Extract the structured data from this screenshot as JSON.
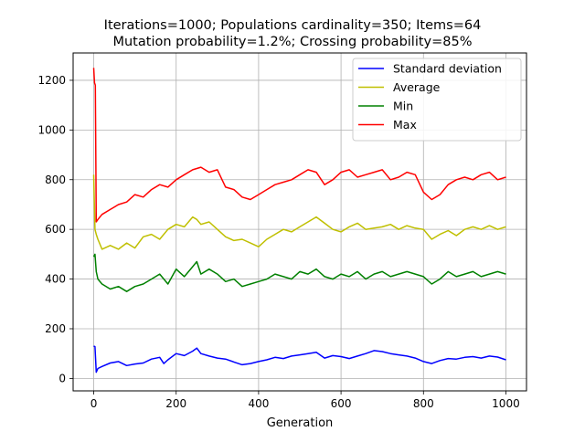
{
  "chart_data": {
    "type": "line",
    "title_lines": [
      "Iterations=1000; Populations cardinality=350; Items=64",
      "Mutation probability=1.2%; Crossing probability=85%"
    ],
    "xlabel": "Generation",
    "ylabel": "",
    "xlim": [
      -50,
      1050
    ],
    "ylim": [
      -50,
      1310
    ],
    "xticks": [
      0,
      200,
      400,
      600,
      800,
      1000
    ],
    "yticks": [
      0,
      200,
      400,
      600,
      800,
      1000,
      1200
    ],
    "grid": true,
    "legend_position": "upper right",
    "series": [
      {
        "name": "Standard deviation",
        "color": "#0000ff",
        "x": [
          0,
          3,
          6,
          10,
          20,
          40,
          60,
          80,
          100,
          120,
          140,
          160,
          170,
          180,
          200,
          220,
          240,
          250,
          260,
          280,
          300,
          320,
          340,
          360,
          380,
          400,
          420,
          440,
          460,
          480,
          500,
          520,
          540,
          560,
          580,
          600,
          620,
          640,
          660,
          680,
          700,
          720,
          740,
          760,
          780,
          800,
          820,
          840,
          860,
          880,
          900,
          920,
          940,
          960,
          980,
          1000
        ],
        "y": [
          130,
          128,
          25,
          40,
          48,
          62,
          68,
          52,
          58,
          62,
          78,
          85,
          60,
          75,
          100,
          92,
          110,
          122,
          100,
          90,
          82,
          78,
          66,
          55,
          60,
          68,
          75,
          85,
          80,
          90,
          95,
          100,
          105,
          82,
          92,
          88,
          80,
          90,
          100,
          112,
          108,
          100,
          95,
          90,
          82,
          68,
          60,
          72,
          80,
          78,
          85,
          88,
          82,
          90,
          86,
          75
        ]
      },
      {
        "name": "Average",
        "color": "#bfbf00",
        "x": [
          0,
          3,
          6,
          10,
          20,
          40,
          60,
          80,
          100,
          120,
          140,
          160,
          180,
          200,
          220,
          240,
          250,
          260,
          280,
          300,
          320,
          340,
          360,
          380,
          400,
          420,
          440,
          460,
          480,
          500,
          520,
          540,
          560,
          580,
          600,
          620,
          640,
          660,
          680,
          700,
          720,
          740,
          760,
          780,
          800,
          820,
          840,
          860,
          880,
          900,
          920,
          940,
          960,
          980,
          1000
        ],
        "y": [
          820,
          600,
          580,
          560,
          520,
          535,
          520,
          545,
          525,
          570,
          580,
          560,
          600,
          620,
          610,
          650,
          640,
          620,
          630,
          600,
          570,
          555,
          560,
          545,
          530,
          560,
          580,
          600,
          590,
          610,
          630,
          650,
          625,
          600,
          590,
          610,
          625,
          600,
          605,
          610,
          620,
          600,
          615,
          605,
          600,
          560,
          580,
          595,
          575,
          600,
          610,
          600,
          615,
          600,
          610
        ]
      },
      {
        "name": "Min",
        "color": "#008000",
        "x": [
          0,
          3,
          6,
          10,
          20,
          40,
          60,
          80,
          100,
          120,
          140,
          160,
          180,
          200,
          220,
          240,
          250,
          260,
          280,
          300,
          320,
          340,
          360,
          380,
          400,
          420,
          440,
          460,
          480,
          500,
          520,
          540,
          560,
          580,
          600,
          620,
          640,
          660,
          680,
          700,
          720,
          740,
          760,
          780,
          800,
          820,
          840,
          860,
          880,
          900,
          920,
          940,
          960,
          980,
          1000
        ],
        "y": [
          490,
          500,
          430,
          400,
          380,
          360,
          370,
          350,
          370,
          380,
          400,
          420,
          380,
          440,
          410,
          450,
          470,
          420,
          440,
          420,
          390,
          400,
          370,
          380,
          390,
          400,
          420,
          410,
          400,
          430,
          420,
          440,
          410,
          400,
          420,
          410,
          430,
          400,
          420,
          430,
          410,
          420,
          430,
          420,
          410,
          380,
          400,
          430,
          410,
          420,
          430,
          410,
          420,
          430,
          420
        ]
      },
      {
        "name": "Max",
        "color": "#ff0000",
        "x": [
          0,
          2,
          4,
          6,
          10,
          20,
          40,
          60,
          80,
          100,
          120,
          140,
          160,
          180,
          200,
          220,
          240,
          260,
          280,
          300,
          320,
          340,
          360,
          380,
          400,
          420,
          440,
          460,
          480,
          500,
          520,
          540,
          560,
          580,
          600,
          620,
          640,
          660,
          680,
          700,
          720,
          740,
          760,
          780,
          800,
          820,
          840,
          860,
          880,
          900,
          920,
          940,
          960,
          980,
          1000
        ],
        "y": [
          1250,
          1190,
          1180,
          630,
          640,
          660,
          680,
          700,
          710,
          740,
          730,
          760,
          780,
          770,
          800,
          820,
          840,
          850,
          830,
          840,
          770,
          760,
          730,
          720,
          740,
          760,
          780,
          790,
          800,
          820,
          840,
          830,
          780,
          800,
          830,
          840,
          810,
          820,
          830,
          840,
          800,
          810,
          830,
          820,
          750,
          720,
          740,
          780,
          800,
          810,
          800,
          820,
          830,
          800,
          810
        ]
      }
    ]
  }
}
